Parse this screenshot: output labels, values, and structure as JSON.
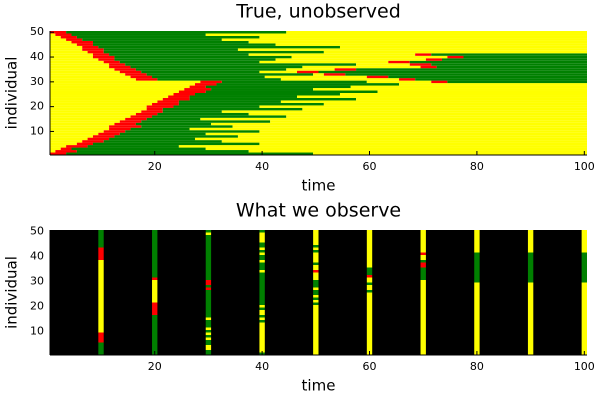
{
  "chart_data": [
    {
      "type": "heatmap",
      "title": "True, unobserved",
      "x_label": "time",
      "y_label": "individual",
      "xlim": [
        0.5,
        100.5
      ],
      "ylim": [
        0.5,
        50.5
      ],
      "xticks": [
        20,
        40,
        60,
        80,
        100
      ],
      "yticks": [
        10,
        20,
        30,
        40,
        50
      ],
      "colors": {
        "susceptible": "#ffff00",
        "infected": "#ff0000",
        "recovered": "#008000"
      },
      "episodes": [
        [
          [
            1,
            4,
            50
          ]
        ],
        [
          [
            2,
            6,
            38
          ]
        ],
        [
          [
            3,
            5,
            30
          ]
        ],
        [
          [
            4,
            8,
            25
          ]
        ],
        [
          [
            6,
            9,
            40
          ]
        ],
        [
          [
            7,
            11,
            33
          ]
        ],
        [
          [
            8,
            12,
            28
          ]
        ],
        [
          [
            9,
            13,
            36
          ]
        ],
        [
          [
            10,
            14,
            30
          ]
        ],
        [
          [
            11,
            15,
            40
          ]
        ],
        [
          [
            12,
            16,
            27
          ]
        ],
        [
          [
            12,
            18,
            35
          ]
        ],
        [
          [
            13,
            17,
            31
          ]
        ],
        [
          [
            14,
            18,
            42
          ]
        ],
        [
          [
            15,
            19,
            29
          ]
        ],
        [
          [
            16,
            20,
            45
          ]
        ],
        [
          [
            17,
            21,
            38
          ]
        ],
        [
          [
            18,
            22,
            33
          ]
        ],
        [
          [
            19,
            22,
            48
          ]
        ],
        [
          [
            19,
            24,
            40
          ]
        ],
        [
          [
            20,
            25,
            52
          ]
        ],
        [
          [
            21,
            25,
            44
          ]
        ],
        [
          [
            22,
            27,
            58
          ]
        ],
        [
          [
            23,
            27,
            47
          ]
        ],
        [
          [
            24,
            28,
            55
          ]
        ],
        [
          [
            25,
            30,
            62
          ]
        ],
        [
          [
            26,
            31,
            50
          ]
        ],
        [
          [
            27,
            30,
            57
          ]
        ],
        [
          [
            28,
            32,
            66
          ]
        ],
        [
          [
            29,
            33,
            60
          ],
          [
            72,
            75,
            null
          ]
        ],
        [
          [
            17,
            21,
            44
          ],
          [
            66,
            69,
            null
          ]
        ],
        [
          [
            16,
            20,
            41
          ],
          [
            60,
            64,
            null
          ]
        ],
        [
          [
            15,
            19,
            50
          ],
          [
            52,
            56,
            null
          ]
        ],
        [
          [
            14,
            18,
            40
          ],
          [
            47,
            51,
            null
          ]
        ],
        [
          [
            13,
            17,
            45
          ],
          [
            54,
            58,
            null
          ]
        ],
        [
          [
            12,
            16,
            48
          ],
          [
            70,
            73,
            null
          ]
        ],
        [
          [
            12,
            15,
            58
          ],
          [
            68,
            72,
            null
          ]
        ],
        [
          [
            11,
            14,
            40
          ],
          [
            64,
            68,
            null
          ]
        ],
        [
          [
            10,
            13,
            43
          ],
          [
            71,
            74,
            null
          ]
        ],
        [
          [
            9,
            13,
            46
          ],
          [
            75,
            78,
            null
          ]
        ],
        [
          [
            9,
            12,
            38
          ],
          [
            69,
            72,
            null
          ]
        ],
        [
          [
            8,
            11,
            52
          ]
        ],
        [
          [
            7,
            11,
            36
          ]
        ],
        [
          [
            7,
            10,
            55
          ]
        ],
        [
          [
            6,
            9,
            43
          ]
        ],
        [
          [
            5,
            9,
            38
          ]
        ],
        [
          [
            4,
            7,
            33
          ]
        ],
        [
          [
            3,
            6,
            40
          ]
        ],
        [
          [
            2,
            5,
            30
          ]
        ],
        [
          [
            1,
            4,
            45
          ]
        ]
      ]
    },
    {
      "type": "observed",
      "title": "What we observe",
      "x_label": "time",
      "y_label": "individual",
      "xlim": [
        0.5,
        100.5
      ],
      "ylim": [
        0.5,
        50.5
      ],
      "xticks": [
        20,
        40,
        60,
        80,
        100
      ],
      "yticks": [
        10,
        20,
        30,
        40,
        50
      ],
      "background": "#000000",
      "observation_times": [
        10,
        20,
        30,
        40,
        50,
        60,
        70,
        80,
        90,
        100
      ]
    }
  ]
}
